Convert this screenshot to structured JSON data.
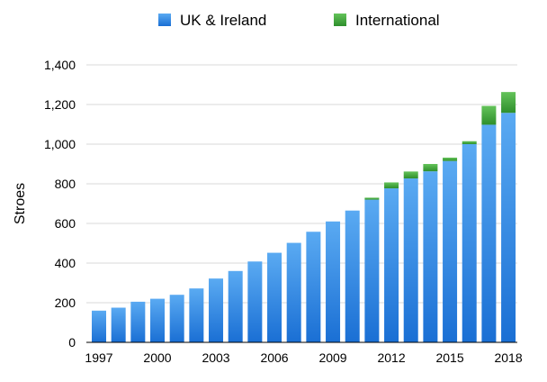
{
  "chart_data": {
    "type": "bar",
    "stacked": true,
    "title": "",
    "xlabel": "",
    "ylabel": "Stroes",
    "ylim": [
      0,
      1400
    ],
    "yticks": [
      0,
      200,
      400,
      600,
      800,
      1000,
      1200,
      1400
    ],
    "ytick_labels": [
      "0",
      "200",
      "400",
      "600",
      "800",
      "1,000",
      "1,200",
      "1,400"
    ],
    "xtick_labels": [
      "1997",
      "2000",
      "2003",
      "2006",
      "2009",
      "2012",
      "2015",
      "2018"
    ],
    "categories": [
      "1997",
      "1998",
      "1999",
      "2000",
      "2001",
      "2002",
      "2003",
      "2004",
      "2005",
      "2006",
      "2007",
      "2008",
      "2009",
      "2010",
      "2011",
      "2012",
      "2013",
      "2014",
      "2015",
      "2016",
      "2017",
      "2018"
    ],
    "series": [
      {
        "name": "UK & Ireland",
        "color": "#2f86e0",
        "values": [
          160,
          175,
          205,
          220,
          240,
          272,
          322,
          360,
          408,
          452,
          502,
          558,
          610,
          665,
          720,
          777,
          827,
          863,
          915,
          1000,
          1098,
          1158
        ]
      },
      {
        "name": "International",
        "color": "#3fa33a",
        "values": [
          0,
          0,
          0,
          0,
          0,
          0,
          0,
          0,
          0,
          0,
          0,
          0,
          0,
          0,
          10,
          30,
          35,
          37,
          17,
          15,
          95,
          105
        ]
      }
    ],
    "legend": "top",
    "grid": true
  }
}
